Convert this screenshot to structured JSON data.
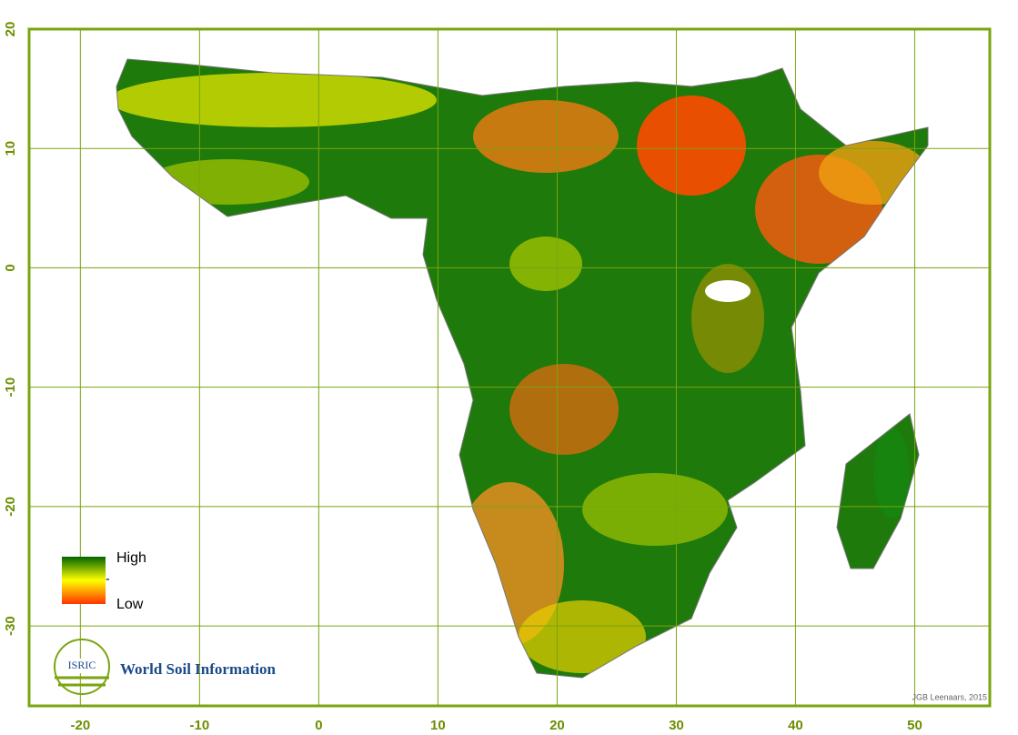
{
  "chart_data": {
    "type": "map",
    "xlim": [
      -24.3,
      56.3
    ],
    "ylim": [
      -36.7,
      20
    ],
    "xticks": [
      -20,
      -10,
      0,
      10,
      20,
      30,
      40,
      50
    ],
    "yticks": [
      -30,
      -20,
      -10,
      0,
      10,
      20
    ],
    "grid": true,
    "color": "#7aa510",
    "legend": {
      "labels": [
        "High",
        "-",
        "Low"
      ],
      "colors": [
        "#006400",
        "#ffff00",
        "#ff3300"
      ]
    }
  },
  "logo": {
    "acronym": "ISRIC",
    "text": "World Soil Information"
  },
  "credit": "JGB Leenaars, 2015"
}
